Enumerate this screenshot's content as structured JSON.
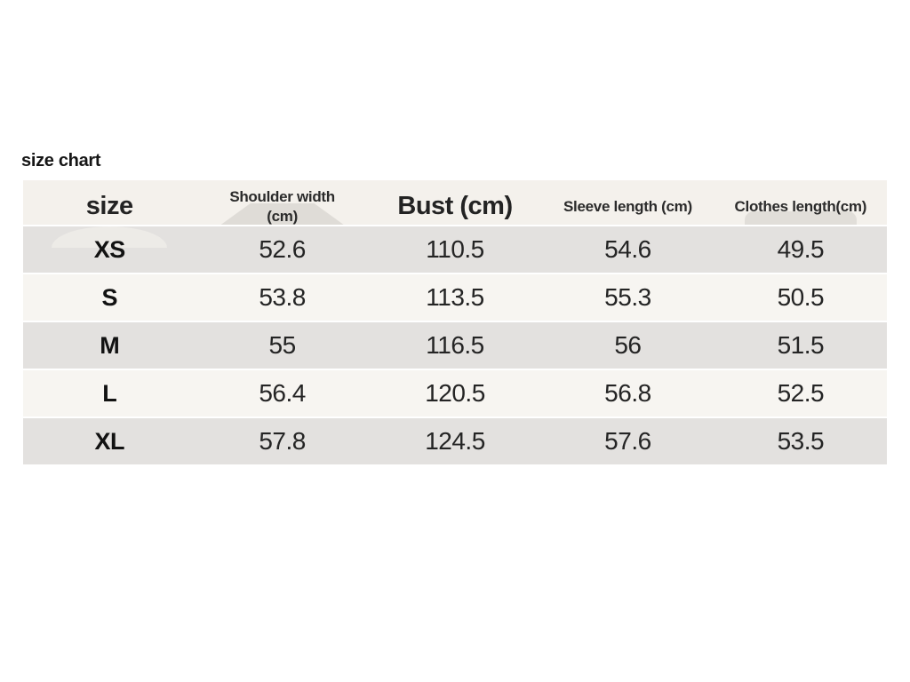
{
  "page": {
    "title": "size chart"
  },
  "chart_data": {
    "type": "table",
    "title": "size chart",
    "columns": [
      "size",
      "Shoulder width (cm)",
      "Bust (cm)",
      "Sleeve length (cm)",
      "Clothes length(cm)"
    ],
    "rows": [
      [
        "XS",
        52.6,
        110.5,
        54.6,
        49.5
      ],
      [
        "S",
        53.8,
        113.5,
        55.3,
        50.5
      ],
      [
        "M",
        55,
        116.5,
        56,
        51.5
      ],
      [
        "L",
        56.4,
        120.5,
        56.8,
        52.5
      ],
      [
        "XL",
        57.8,
        124.5,
        57.6,
        53.5
      ]
    ]
  },
  "colors": {
    "page_bg": "#ffffff",
    "header_bg": "#f4f1ec",
    "row_gray_bg": "#e3e1df",
    "row_light_bg": "#f7f5f1",
    "text_dark": "#1c1c1c"
  }
}
